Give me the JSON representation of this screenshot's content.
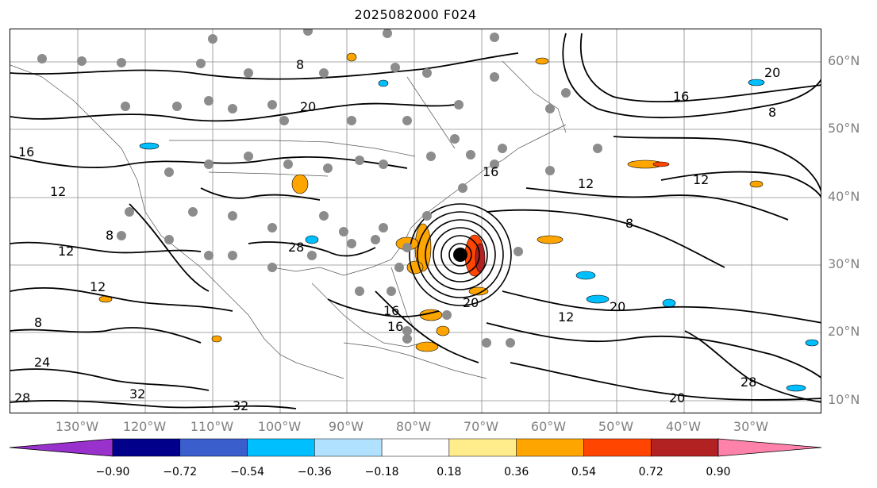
{
  "title": "2025082000 F024",
  "map": {
    "latitude_labels": [
      "60°N",
      "50°N",
      "40°N",
      "30°N",
      "20°N",
      "10°N"
    ],
    "longitude_labels": [
      "130°W",
      "120°W",
      "110°W",
      "100°W",
      "90°W",
      "80°W",
      "70°W",
      "60°W",
      "50°W",
      "40°W",
      "30°W"
    ],
    "contour_labels": [
      "8",
      "12",
      "16",
      "20",
      "24",
      "28",
      "32"
    ],
    "contour_line_color": "#000000",
    "gridline_color": "#8c8c8c",
    "storm_marker": "filled black dot at center of hurricane circulation",
    "station_marker_color": "#8c8c8c"
  },
  "colorbar": {
    "tick_labels": [
      "−0.90",
      "−0.72",
      "−0.54",
      "−0.36",
      "−0.18",
      "0.18",
      "0.36",
      "0.54",
      "0.72",
      "0.90"
    ],
    "colors": [
      "#9932cc",
      "#00008b",
      "#3a5fcd",
      "#00bfff",
      "#b0e2ff",
      "#ffffff",
      "#ffec8b",
      "#ffa500",
      "#ff4500",
      "#b22222",
      "#ff82ab"
    ],
    "extend": "both"
  }
}
